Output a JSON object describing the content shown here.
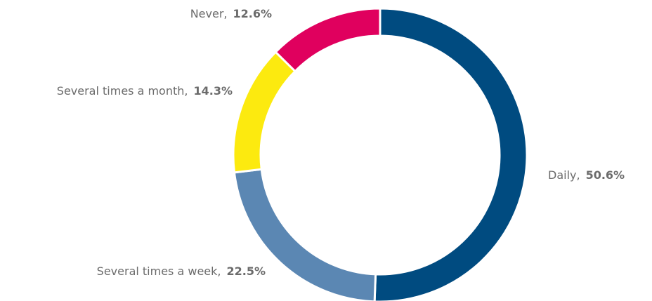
{
  "chart_data": {
    "type": "donut",
    "categories": [
      "Daily,",
      "Several times a week,",
      "Several times a month,",
      "Never,"
    ],
    "values": [
      50.6,
      22.5,
      14.3,
      12.6
    ],
    "value_labels": [
      "50.6%",
      "22.5%",
      "14.3%",
      "12.6%"
    ],
    "colors": [
      "#004b80",
      "#5b87b3",
      "#fcea0f",
      "#e0005e"
    ]
  }
}
